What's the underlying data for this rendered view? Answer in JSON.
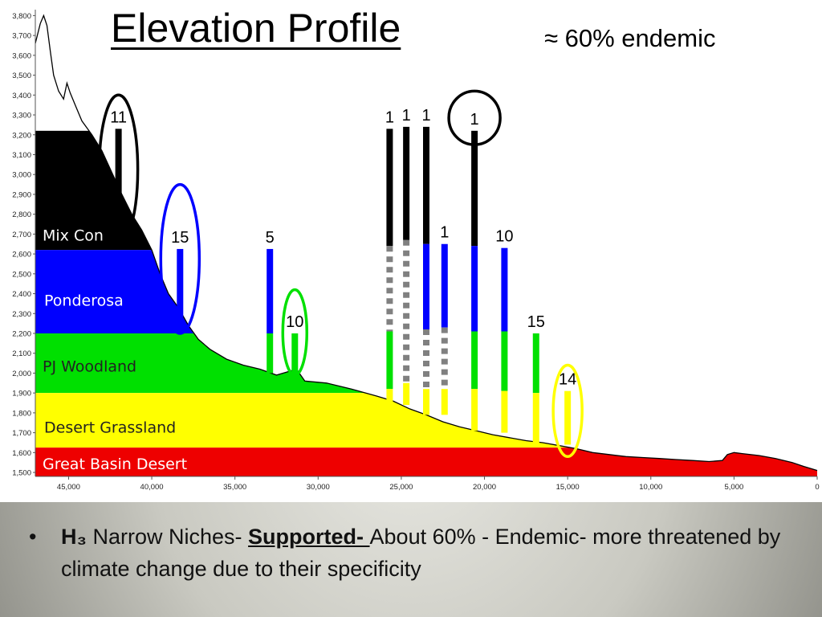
{
  "slide": {
    "title": "Elevation Profile",
    "endemic_note": "≈ 60% endemic"
  },
  "bullet": {
    "symbol": "•",
    "h": "H",
    "h_sub": "₃",
    "text1": " Narrow Niches- ",
    "supported": "Supported- ",
    "text2": "About 60% - Endemic- more threatened by climate change due to their specificity"
  },
  "colors": {
    "mixed_conifer": "#000000",
    "ponderosa": "#0000ff",
    "pj_woodland": "#00e000",
    "desert_grassland": "#ffff00",
    "great_basin_desert": "#ee0000",
    "dashed_gap": "#808080"
  },
  "chart_data": {
    "type": "area",
    "xlim": [
      47000,
      0
    ],
    "ylim": [
      1480,
      3830
    ],
    "x_ticks": [
      45000,
      40000,
      35000,
      30000,
      25000,
      20000,
      15000,
      10000,
      5000,
      0
    ],
    "x_tick_labels": [
      "45,000",
      "40,000",
      "35,000",
      "30,000",
      "25,000",
      "20,000",
      "15,000",
      "10,000",
      "5,000",
      "0"
    ],
    "y_ticks": [
      1500,
      1600,
      1700,
      1800,
      1900,
      2000,
      2100,
      2200,
      2300,
      2400,
      2500,
      2600,
      2700,
      2800,
      2900,
      3000,
      3100,
      3200,
      3300,
      3400,
      3500,
      3600,
      3700,
      3800
    ],
    "y_tick_labels": [
      "1,500",
      "1,600",
      "1,700",
      "1,800",
      "1,900",
      "2,000",
      "2,100",
      "2,200",
      "2,300",
      "2,400",
      "2,500",
      "2,600",
      "2,700",
      "2,800",
      "2,900",
      "3,000",
      "3,100",
      "3,200",
      "3,300",
      "3,400",
      "3,500",
      "3,600",
      "3,700",
      "3,800"
    ],
    "zones": [
      {
        "name": "Mix Con",
        "low": 2620,
        "high": 3220,
        "color": "#000000",
        "label_color": "light"
      },
      {
        "name": "Ponderosa",
        "low": 2200,
        "high": 2620,
        "color": "#0000ff",
        "label_color": "light"
      },
      {
        "name": "PJ Woodland",
        "low": 1900,
        "high": 2200,
        "color": "#00e000",
        "label_color": "dark"
      },
      {
        "name": "Desert Grassland",
        "low": 1625,
        "high": 1900,
        "color": "#ffff00",
        "label_color": "dark"
      },
      {
        "name": "Great Basin Desert",
        "low": 1480,
        "high": 1625,
        "color": "#ee0000",
        "label_color": "light"
      }
    ],
    "profile": [
      [
        47000,
        3660
      ],
      [
        46700,
        3760
      ],
      [
        46500,
        3800
      ],
      [
        46300,
        3750
      ],
      [
        46100,
        3620
      ],
      [
        45900,
        3500
      ],
      [
        45600,
        3420
      ],
      [
        45300,
        3380
      ],
      [
        45100,
        3460
      ],
      [
        44900,
        3410
      ],
      [
        44600,
        3350
      ],
      [
        44200,
        3270
      ],
      [
        43600,
        3200
      ],
      [
        43000,
        3120
      ],
      [
        42400,
        3010
      ],
      [
        41800,
        2900
      ],
      [
        41200,
        2800
      ],
      [
        40600,
        2720
      ],
      [
        40000,
        2620
      ],
      [
        39500,
        2500
      ],
      [
        39000,
        2400
      ],
      [
        38400,
        2330
      ],
      [
        37800,
        2240
      ],
      [
        37200,
        2170
      ],
      [
        36500,
        2120
      ],
      [
        35500,
        2070
      ],
      [
        34500,
        2040
      ],
      [
        33500,
        2020
      ],
      [
        32500,
        1990
      ],
      [
        31700,
        2010
      ],
      [
        31300,
        2020
      ],
      [
        30800,
        1960
      ],
      [
        29500,
        1950
      ],
      [
        28000,
        1920
      ],
      [
        26500,
        1885
      ],
      [
        25500,
        1860
      ],
      [
        24500,
        1820
      ],
      [
        23500,
        1790
      ],
      [
        22500,
        1755
      ],
      [
        21500,
        1730
      ],
      [
        20500,
        1710
      ],
      [
        19500,
        1690
      ],
      [
        18500,
        1675
      ],
      [
        17500,
        1660
      ],
      [
        16500,
        1650
      ],
      [
        15500,
        1635
      ],
      [
        14500,
        1620
      ],
      [
        13500,
        1600
      ],
      [
        12500,
        1590
      ],
      [
        11500,
        1580
      ],
      [
        10500,
        1575
      ],
      [
        9500,
        1570
      ],
      [
        8500,
        1565
      ],
      [
        7500,
        1560
      ],
      [
        6500,
        1555
      ],
      [
        5700,
        1560
      ],
      [
        5400,
        1590
      ],
      [
        5000,
        1600
      ],
      [
        4500,
        1595
      ],
      [
        3500,
        1585
      ],
      [
        2500,
        1570
      ],
      [
        1500,
        1550
      ],
      [
        800,
        1530
      ],
      [
        0,
        1510
      ]
    ],
    "bars": [
      {
        "x": 42000,
        "label": "11",
        "segments": [
          {
            "lo": 2700,
            "hi": 3230,
            "color": "#000000"
          }
        ]
      },
      {
        "x": 38300,
        "label": "15",
        "segments": [
          {
            "lo": 2200,
            "hi": 2625,
            "color": "#0000ff"
          }
        ]
      },
      {
        "x": 32900,
        "label": "5",
        "segments": [
          {
            "lo": 2200,
            "hi": 2625,
            "color": "#0000ff"
          },
          {
            "lo": 2000,
            "hi": 2200,
            "color": "#00e000"
          }
        ]
      },
      {
        "x": 31400,
        "label": "10",
        "segments": [
          {
            "lo": 2000,
            "hi": 2200,
            "color": "#00e000"
          }
        ]
      },
      {
        "x": 25700,
        "label": "1",
        "segments": [
          {
            "lo": 2640,
            "hi": 3230,
            "color": "#000000"
          },
          {
            "lo": 2210,
            "hi": 2640,
            "color": "#808080",
            "dashed": true
          },
          {
            "lo": 1920,
            "hi": 2210,
            "color": "#00e000"
          },
          {
            "lo": 1840,
            "hi": 1920,
            "color": "#ffff00"
          }
        ]
      },
      {
        "x": 24700,
        "label": "1",
        "segments": [
          {
            "lo": 2670,
            "hi": 3240,
            "color": "#000000"
          },
          {
            "lo": 1950,
            "hi": 2670,
            "color": "#808080",
            "dashed": true
          },
          {
            "lo": 1840,
            "hi": 1950,
            "color": "#ffff00"
          }
        ]
      },
      {
        "x": 23500,
        "label": "1",
        "segments": [
          {
            "lo": 2650,
            "hi": 3240,
            "color": "#000000"
          },
          {
            "lo": 2220,
            "hi": 2650,
            "color": "#0000ff"
          },
          {
            "lo": 1920,
            "hi": 2220,
            "color": "#808080",
            "dashed": true
          },
          {
            "lo": 1790,
            "hi": 1920,
            "color": "#ffff00"
          }
        ]
      },
      {
        "x": 22400,
        "label": "1",
        "segments": [
          {
            "lo": 2230,
            "hi": 2650,
            "color": "#0000ff"
          },
          {
            "lo": 1920,
            "hi": 2230,
            "color": "#808080",
            "dashed": true
          },
          {
            "lo": 1790,
            "hi": 1920,
            "color": "#ffff00"
          }
        ]
      },
      {
        "x": 20600,
        "label": "1",
        "segments": [
          {
            "lo": 2640,
            "hi": 3220,
            "color": "#000000"
          },
          {
            "lo": 2210,
            "hi": 2640,
            "color": "#0000ff"
          },
          {
            "lo": 1920,
            "hi": 2210,
            "color": "#00e000"
          },
          {
            "lo": 1710,
            "hi": 1920,
            "color": "#ffff00"
          }
        ]
      },
      {
        "x": 18800,
        "label": "10",
        "segments": [
          {
            "lo": 2210,
            "hi": 2630,
            "color": "#0000ff"
          },
          {
            "lo": 1910,
            "hi": 2210,
            "color": "#00e000"
          },
          {
            "lo": 1700,
            "hi": 1910,
            "color": "#ffff00"
          }
        ]
      },
      {
        "x": 16900,
        "label": "15",
        "segments": [
          {
            "lo": 1900,
            "hi": 2200,
            "color": "#00e000"
          },
          {
            "lo": 1630,
            "hi": 1900,
            "color": "#ffff00"
          }
        ]
      },
      {
        "x": 15000,
        "label": "14",
        "segments": [
          {
            "lo": 1640,
            "hi": 1910,
            "color": "#ffff00"
          }
        ]
      }
    ],
    "ellipses": [
      {
        "x": 42000,
        "color": "#000000",
        "y_lo": 2650,
        "y_hi": 3400,
        "rx": 24
      },
      {
        "x": 38300,
        "color": "#0000ff",
        "y_lo": 2200,
        "y_hi": 2950,
        "rx": 24
      },
      {
        "x": 31400,
        "color": "#00e000",
        "y_lo": 1990,
        "y_hi": 2420,
        "rx": 15
      },
      {
        "x": 20600,
        "color": "#000000",
        "y_lo": 3150,
        "y_hi": 3420,
        "rx": 32
      },
      {
        "x": 15000,
        "color": "#ffff00",
        "y_lo": 1580,
        "y_hi": 2040,
        "rx": 18
      }
    ]
  }
}
